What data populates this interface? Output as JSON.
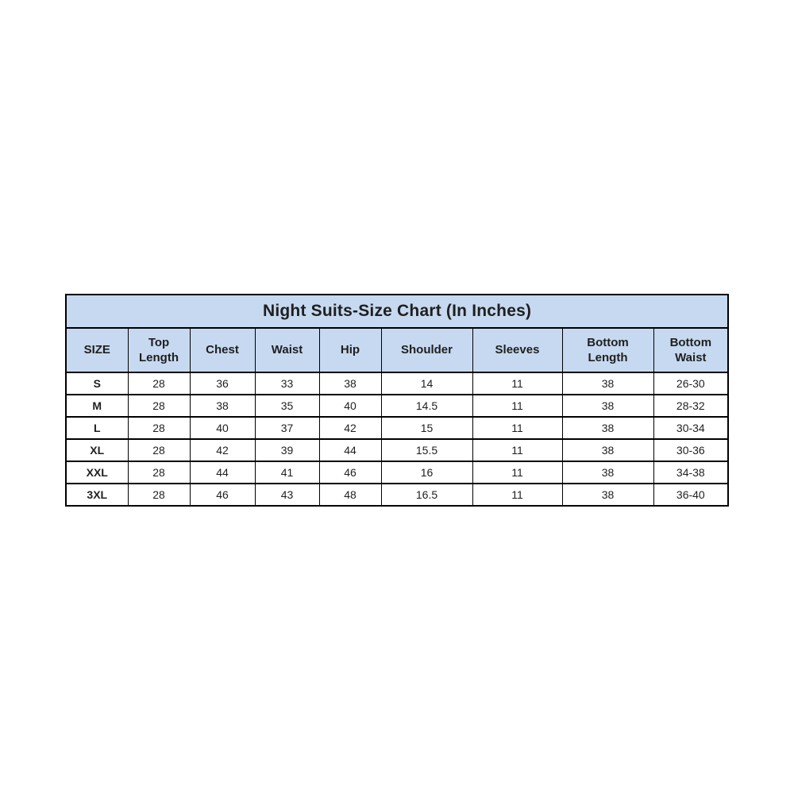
{
  "colors": {
    "header_bg": "#c6d9f0",
    "border": "#000000",
    "text": "#1f1f1f",
    "row_bg": "#ffffff"
  },
  "chart_data": {
    "type": "table",
    "title": "Night Suits-Size Chart (In Inches)",
    "columns": [
      "SIZE",
      "Top\nLength",
      "Chest",
      "Waist",
      "Hip",
      "Shoulder",
      "Sleeves",
      "Bottom\nLength",
      "Bottom\nWaist"
    ],
    "rows": [
      [
        "S",
        "28",
        "36",
        "33",
        "38",
        "14",
        "11",
        "38",
        "26-30"
      ],
      [
        "M",
        "28",
        "38",
        "35",
        "40",
        "14.5",
        "11",
        "38",
        "28-32"
      ],
      [
        "L",
        "28",
        "40",
        "37",
        "42",
        "15",
        "11",
        "38",
        "30-34"
      ],
      [
        "XL",
        "28",
        "42",
        "39",
        "44",
        "15.5",
        "11",
        "38",
        "30-36"
      ],
      [
        "XXL",
        "28",
        "44",
        "41",
        "46",
        "16",
        "11",
        "38",
        "34-38"
      ],
      [
        "3XL",
        "28",
        "46",
        "43",
        "48",
        "16.5",
        "11",
        "38",
        "36-40"
      ]
    ]
  }
}
